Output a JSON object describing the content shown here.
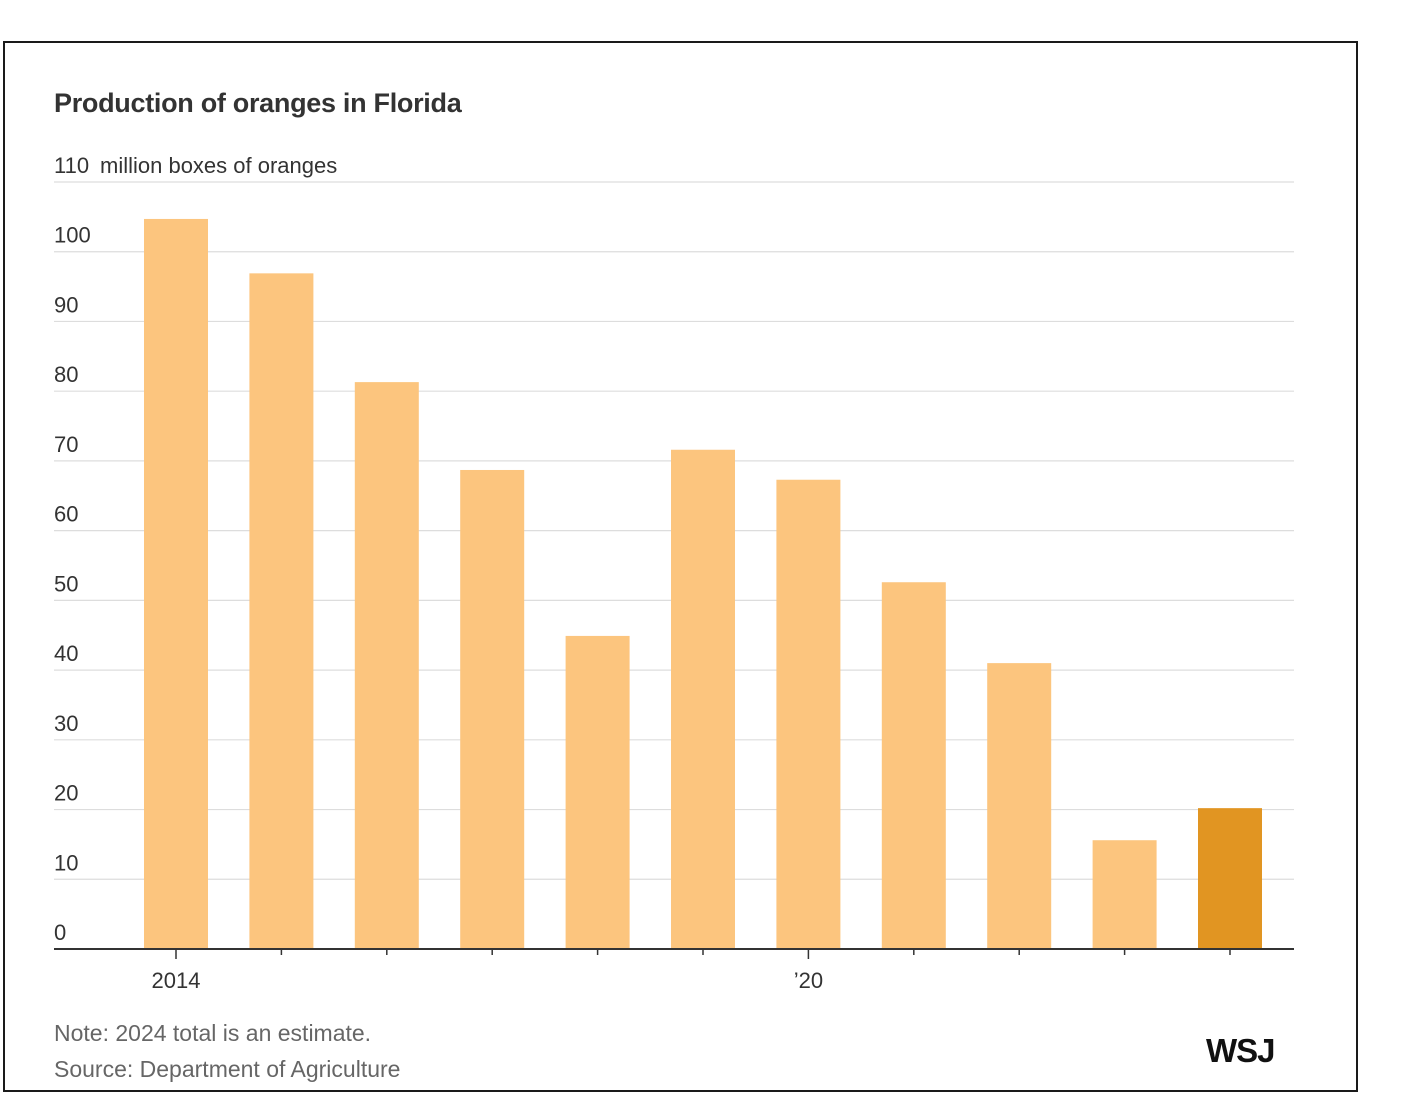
{
  "chart_data": {
    "type": "bar",
    "title": "Production of oranges in Florida",
    "ylabel": "million boxes of oranges",
    "ylim": [
      0,
      110
    ],
    "yticks": [
      0,
      10,
      20,
      30,
      40,
      50,
      60,
      70,
      80,
      90,
      100,
      110
    ],
    "categories": [
      "2014",
      "2015",
      "2016",
      "2017",
      "2018",
      "2019",
      "2020",
      "2021",
      "2022",
      "2023",
      "2024"
    ],
    "x_tick_labels": {
      "2014": "2014",
      "2020": "’20"
    },
    "values": [
      104.7,
      96.9,
      81.3,
      68.7,
      44.9,
      71.6,
      67.3,
      52.6,
      41.0,
      15.6,
      20.2
    ],
    "highlight_category": "2024",
    "colors": {
      "bar": "#fcc57e",
      "highlight": "#e19522",
      "grid": "#dddddd",
      "axis": "#333333"
    },
    "grid": true
  },
  "footer": {
    "note": "Note: 2024 total is an estimate.",
    "source": "Source: Department of Agriculture",
    "logo": "WSJ"
  }
}
